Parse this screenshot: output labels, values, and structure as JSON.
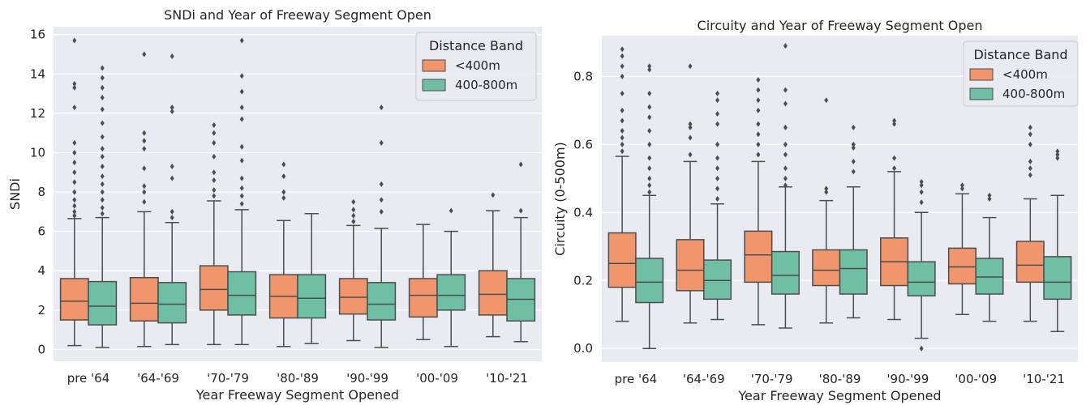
{
  "colors": {
    "band1": "#f0956c",
    "band2": "#6fbfa5",
    "panel_bg": "#eaeaf2",
    "grid": "#ffffff",
    "line": "#4d4d4d"
  },
  "chart_data": [
    {
      "type": "box",
      "title": "SNDi and Year of Freeway Segment Open",
      "xlabel": "Year Freeway Segment Opened",
      "ylabel": "SNDi",
      "categories": [
        "pre '64",
        "'64-'69",
        "'70-'79",
        "'80-'89",
        "'90-'99",
        "'00-'09",
        "'10-'21"
      ],
      "ylim": [
        -0.6,
        16.4
      ],
      "yticks": [
        0,
        2,
        4,
        6,
        8,
        10,
        12,
        14,
        16
      ],
      "grid": true,
      "legend": {
        "title": "Distance Band",
        "position": "top-right"
      },
      "series": [
        {
          "name": "<400m",
          "color": "#f0956c",
          "boxes": [
            {
              "whislo": 0.2,
              "q1": 1.5,
              "med": 2.45,
              "q3": 3.6,
              "whishi": 6.65,
              "fliers": [
                6.8,
                7.0,
                7.3,
                7.6,
                8.0,
                8.5,
                9.0,
                9.5,
                10.0,
                10.5,
                12.3,
                13.3,
                13.5,
                15.7
              ]
            },
            {
              "whislo": 0.15,
              "q1": 1.45,
              "med": 2.35,
              "q3": 3.65,
              "whishi": 7.0,
              "fliers": [
                7.5,
                8.0,
                8.3,
                9.2,
                10.2,
                10.6,
                11.0,
                15.0
              ]
            },
            {
              "whislo": 0.25,
              "q1": 2.0,
              "med": 3.05,
              "q3": 4.25,
              "whishi": 7.55,
              "fliers": [
                7.8,
                8.1,
                8.6,
                9.0,
                9.8,
                10.5,
                11.0,
                11.4
              ]
            },
            {
              "whislo": 0.15,
              "q1": 1.6,
              "med": 2.7,
              "q3": 3.8,
              "whishi": 6.55,
              "fliers": [
                7.7,
                8.0,
                8.8,
                9.4
              ]
            },
            {
              "whislo": 0.45,
              "q1": 1.8,
              "med": 2.65,
              "q3": 3.6,
              "whishi": 6.3,
              "fliers": [
                6.5,
                6.8,
                7.1,
                7.5
              ]
            },
            {
              "whislo": 0.5,
              "q1": 1.65,
              "med": 2.75,
              "q3": 3.6,
              "whishi": 6.35,
              "fliers": []
            },
            {
              "whislo": 0.65,
              "q1": 1.75,
              "med": 2.8,
              "q3": 4.0,
              "whishi": 7.05,
              "fliers": [
                7.85
              ]
            }
          ]
        },
        {
          "name": "400-800m",
          "color": "#6fbfa5",
          "boxes": [
            {
              "whislo": 0.1,
              "q1": 1.25,
              "med": 2.2,
              "q3": 3.45,
              "whishi": 6.7,
              "fliers": [
                6.9,
                7.2,
                7.6,
                8.0,
                8.4,
                8.8,
                9.3,
                9.8,
                10.2,
                10.8,
                11.5,
                12.2,
                12.8,
                13.3,
                13.8,
                14.3
              ]
            },
            {
              "whislo": 0.25,
              "q1": 1.35,
              "med": 2.3,
              "q3": 3.4,
              "whishi": 6.45,
              "fliers": [
                6.7,
                7.0,
                8.7,
                9.3,
                12.1,
                12.3,
                14.9
              ]
            },
            {
              "whislo": 0.25,
              "q1": 1.75,
              "med": 2.75,
              "q3": 3.95,
              "whishi": 7.1,
              "fliers": [
                7.4,
                7.8,
                8.2,
                8.7,
                9.6,
                10.3,
                11.7,
                12.3,
                13.1,
                13.9,
                15.7
              ]
            },
            {
              "whislo": 0.3,
              "q1": 1.6,
              "med": 2.6,
              "q3": 3.8,
              "whishi": 6.9,
              "fliers": []
            },
            {
              "whislo": 0.1,
              "q1": 1.5,
              "med": 2.3,
              "q3": 3.4,
              "whishi": 6.15,
              "fliers": [
                7.0,
                7.6,
                8.4,
                10.5,
                12.3
              ]
            },
            {
              "whislo": 0.15,
              "q1": 2.0,
              "med": 2.75,
              "q3": 3.8,
              "whishi": 6.0,
              "fliers": [
                7.05
              ]
            },
            {
              "whislo": 0.4,
              "q1": 1.45,
              "med": 2.55,
              "q3": 3.6,
              "whishi": 6.7,
              "fliers": [
                7.05,
                9.4
              ]
            }
          ]
        }
      ]
    },
    {
      "type": "box",
      "title": "Circuity and Year of Freeway Segment Open",
      "xlabel": "Year Freeway Segment Opened",
      "ylabel": "Circuity (0-500m)",
      "categories": [
        "pre '64",
        "'64-'69",
        "'70-'79",
        "'80-'89",
        "'90-'99",
        "'00-'09",
        "'10-'21"
      ],
      "ylim": [
        -0.04,
        0.92
      ],
      "yticks": [
        0.0,
        0.2,
        0.4,
        0.6,
        0.8
      ],
      "grid": true,
      "legend": {
        "title": "Distance Band",
        "position": "top-right"
      },
      "series": [
        {
          "name": "<400m",
          "color": "#f0956c",
          "boxes": [
            {
              "whislo": 0.08,
              "q1": 0.18,
              "med": 0.25,
              "q3": 0.34,
              "whishi": 0.565,
              "fliers": [
                0.58,
                0.6,
                0.62,
                0.64,
                0.67,
                0.7,
                0.75,
                0.8,
                0.83,
                0.86,
                0.88
              ]
            },
            {
              "whislo": 0.075,
              "q1": 0.17,
              "med": 0.23,
              "q3": 0.32,
              "whishi": 0.55,
              "fliers": [
                0.57,
                0.62,
                0.65,
                0.66,
                0.83
              ]
            },
            {
              "whislo": 0.07,
              "q1": 0.195,
              "med": 0.275,
              "q3": 0.345,
              "whishi": 0.55,
              "fliers": [
                0.57,
                0.6,
                0.63,
                0.66,
                0.7,
                0.73,
                0.76,
                0.79
              ]
            },
            {
              "whislo": 0.075,
              "q1": 0.185,
              "med": 0.23,
              "q3": 0.29,
              "whishi": 0.435,
              "fliers": [
                0.46,
                0.47,
                0.73
              ]
            },
            {
              "whislo": 0.085,
              "q1": 0.185,
              "med": 0.255,
              "q3": 0.325,
              "whishi": 0.52,
              "fliers": [
                0.53,
                0.56,
                0.66,
                0.67
              ]
            },
            {
              "whislo": 0.1,
              "q1": 0.19,
              "med": 0.24,
              "q3": 0.295,
              "whishi": 0.455,
              "fliers": [
                0.47,
                0.48
              ]
            },
            {
              "whislo": 0.08,
              "q1": 0.195,
              "med": 0.245,
              "q3": 0.315,
              "whishi": 0.44,
              "fliers": [
                0.51,
                0.53,
                0.55,
                0.6,
                0.63,
                0.65
              ]
            }
          ]
        },
        {
          "name": "400-800m",
          "color": "#6fbfa5",
          "boxes": [
            {
              "whislo": 0.0,
              "q1": 0.135,
              "med": 0.195,
              "q3": 0.265,
              "whishi": 0.45,
              "fliers": [
                0.46,
                0.48,
                0.5,
                0.53,
                0.56,
                0.6,
                0.64,
                0.68,
                0.71,
                0.75,
                0.82,
                0.83
              ]
            },
            {
              "whislo": 0.085,
              "q1": 0.145,
              "med": 0.2,
              "q3": 0.26,
              "whishi": 0.425,
              "fliers": [
                0.44,
                0.47,
                0.5,
                0.53,
                0.56,
                0.6,
                0.66,
                0.69,
                0.73,
                0.75
              ]
            },
            {
              "whislo": 0.06,
              "q1": 0.16,
              "med": 0.215,
              "q3": 0.285,
              "whishi": 0.475,
              "fliers": [
                0.48,
                0.5,
                0.53,
                0.57,
                0.6,
                0.65,
                0.72,
                0.76,
                0.89
              ]
            },
            {
              "whislo": 0.09,
              "q1": 0.16,
              "med": 0.235,
              "q3": 0.29,
              "whishi": 0.475,
              "fliers": [
                0.52,
                0.55,
                0.59,
                0.6,
                0.65
              ]
            },
            {
              "whislo": 0.03,
              "q1": 0.155,
              "med": 0.195,
              "q3": 0.255,
              "whishi": 0.4,
              "fliers": [
                0.0,
                0.43,
                0.46,
                0.48,
                0.49
              ]
            },
            {
              "whislo": 0.08,
              "q1": 0.16,
              "med": 0.21,
              "q3": 0.265,
              "whishi": 0.385,
              "fliers": [
                0.44,
                0.45
              ]
            },
            {
              "whislo": 0.05,
              "q1": 0.145,
              "med": 0.195,
              "q3": 0.27,
              "whishi": 0.45,
              "fliers": [
                0.56,
                0.57,
                0.58
              ]
            }
          ]
        }
      ]
    }
  ]
}
